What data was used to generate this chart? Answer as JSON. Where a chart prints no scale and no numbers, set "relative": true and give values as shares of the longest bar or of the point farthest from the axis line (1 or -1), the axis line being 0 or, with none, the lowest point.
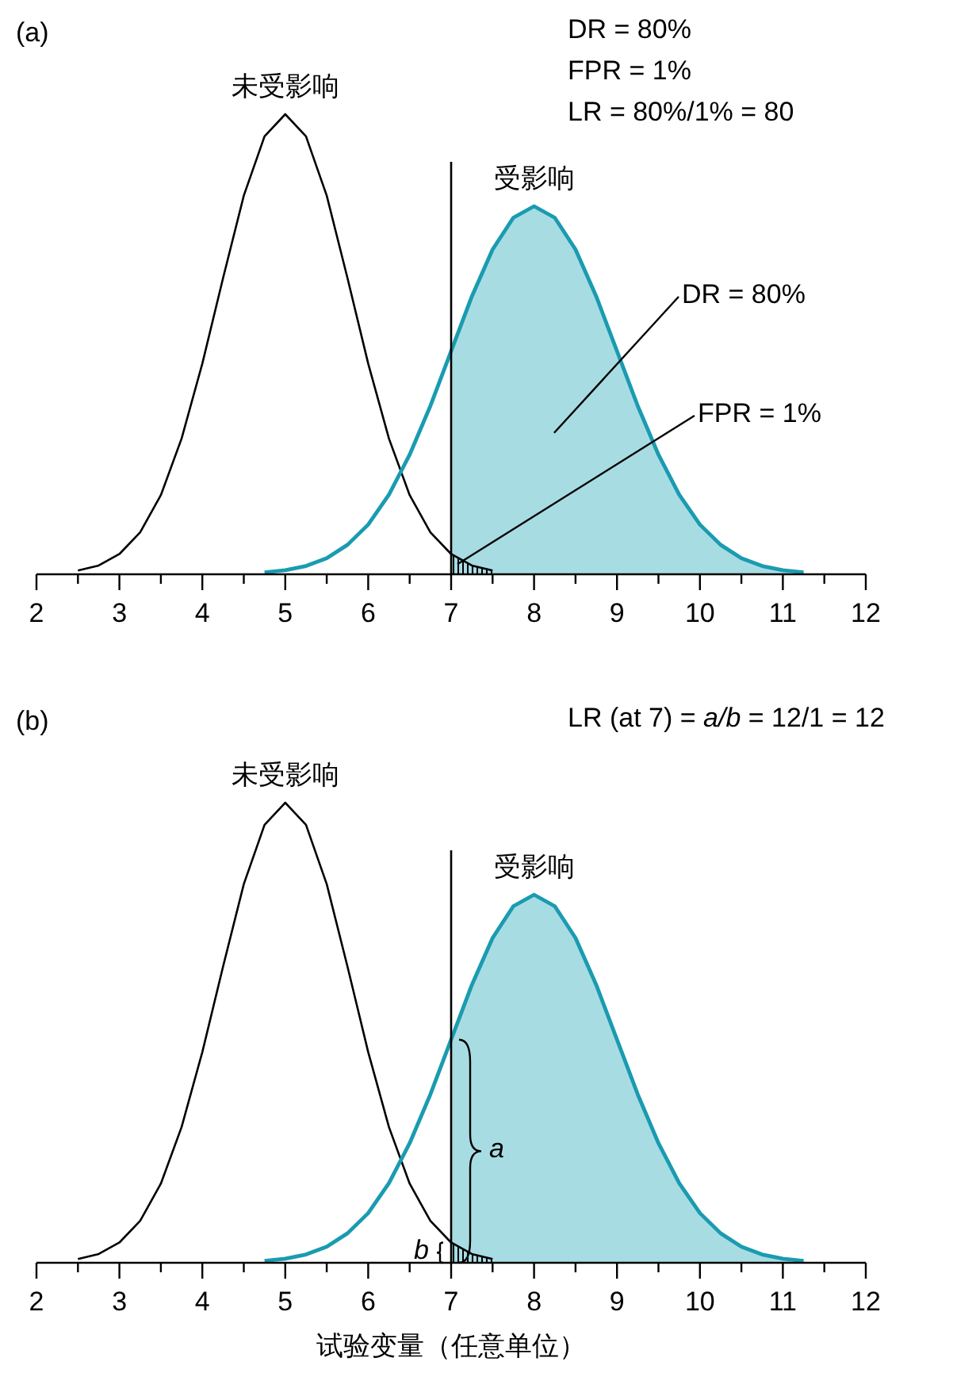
{
  "chart_data": [
    {
      "type": "line",
      "title": "(a)",
      "relative": true,
      "grid": false,
      "tick_labels": "x",
      "xlim": [
        2,
        12
      ],
      "xticks": [
        2,
        {
          "value": 2.5,
          "label": null
        },
        3,
        {
          "value": 3.5,
          "label": null
        },
        4,
        {
          "value": 4.5,
          "label": null
        },
        5,
        {
          "value": 5.5,
          "label": null
        },
        6,
        {
          "value": 6.5,
          "label": null
        },
        7,
        {
          "value": 7.5,
          "label": null
        },
        8,
        {
          "value": 8.5,
          "label": null
        },
        9,
        {
          "value": 9.5,
          "label": null
        },
        10,
        {
          "value": 10.5,
          "label": null
        },
        11,
        {
          "value": 11.5,
          "label": null
        },
        12
      ],
      "series": [
        {
          "type": "area",
          "color": "#a8dce3",
          "x": [
            7,
            7.25,
            7.5,
            7.75,
            8,
            8.25,
            8.5,
            8.75,
            9,
            9.25,
            9.5,
            9.75,
            10,
            10.25,
            10.5,
            10.75,
            11,
            11.25
          ],
          "values": [
            0.485,
            0.604,
            0.706,
            0.775,
            0.8,
            0.775,
            0.706,
            0.604,
            0.485,
            0.366,
            0.26,
            0.173,
            0.108,
            0.064,
            0.035,
            0.018,
            0.009,
            0.004
          ]
        },
        {
          "type": "area",
          "color": "#000000",
          "x": [
            7,
            7.25,
            7.5
          ],
          "values": [
            0.044,
            0.019,
            0.008
          ]
        },
        {
          "name": "未受影响",
          "color": "#000000",
          "x": [
            2.5,
            2.75,
            3,
            3.25,
            3.5,
            3.75,
            4,
            4.25,
            4.5,
            4.75,
            5,
            5.25,
            5.5,
            5.75,
            6,
            6.25,
            6.5,
            6.75,
            7,
            7.25,
            7.5
          ],
          "values": [
            0.008,
            0.019,
            0.044,
            0.091,
            0.172,
            0.295,
            0.458,
            0.644,
            0.823,
            0.952,
            1,
            0.952,
            0.823,
            0.644,
            0.458,
            0.295,
            0.172,
            0.091,
            0.044,
            0.019,
            0.008
          ]
        },
        {
          "name": "受影响",
          "color": "#1a9bb0",
          "x": [
            4.75,
            5,
            5.25,
            5.5,
            5.75,
            6,
            6.25,
            6.5,
            6.75,
            7,
            7.25,
            7.5,
            7.75,
            8,
            8.25,
            8.5,
            8.75,
            9,
            9.25,
            9.5,
            9.75,
            10,
            10.25,
            10.5,
            10.75,
            11,
            11.25
          ],
          "values": [
            0.004,
            0.009,
            0.018,
            0.035,
            0.064,
            0.108,
            0.173,
            0.26,
            0.366,
            0.485,
            0.604,
            0.706,
            0.775,
            0.8,
            0.775,
            0.706,
            0.604,
            0.485,
            0.366,
            0.26,
            0.173,
            0.108,
            0.064,
            0.035,
            0.018,
            0.009,
            0.004
          ]
        }
      ],
      "ref_lines": [
        {
          "axis": "x",
          "value": 7,
          "color": "#000000"
        }
      ],
      "annotations": [
        "DR = 80%",
        "FPR = 1%",
        "LR = 80%/1% = 80",
        "DR = 80%",
        "FPR = 1%"
      ]
    },
    {
      "type": "line",
      "title": "(b)",
      "xlabel": "试验变量（任意单位）",
      "relative": true,
      "grid": false,
      "tick_labels": "x",
      "xlim": [
        2,
        12
      ],
      "xticks": [
        2,
        {
          "value": 2.5,
          "label": null
        },
        3,
        {
          "value": 3.5,
          "label": null
        },
        4,
        {
          "value": 4.5,
          "label": null
        },
        5,
        {
          "value": 5.5,
          "label": null
        },
        6,
        {
          "value": 6.5,
          "label": null
        },
        7,
        {
          "value": 7.5,
          "label": null
        },
        8,
        {
          "value": 8.5,
          "label": null
        },
        9,
        {
          "value": 9.5,
          "label": null
        },
        10,
        {
          "value": 10.5,
          "label": null
        },
        11,
        {
          "value": 11.5,
          "label": null
        },
        12
      ],
      "series": [
        {
          "type": "area",
          "color": "#a8dce3",
          "x": [
            7,
            7.25,
            7.5,
            7.75,
            8,
            8.25,
            8.5,
            8.75,
            9,
            9.25,
            9.5,
            9.75,
            10,
            10.25,
            10.5,
            10.75,
            11,
            11.25
          ],
          "values": [
            0.485,
            0.604,
            0.706,
            0.775,
            0.8,
            0.775,
            0.706,
            0.604,
            0.485,
            0.366,
            0.26,
            0.173,
            0.108,
            0.064,
            0.035,
            0.018,
            0.009,
            0.004
          ]
        },
        {
          "type": "area",
          "color": "#000000",
          "x": [
            7,
            7.25,
            7.5
          ],
          "values": [
            0.044,
            0.019,
            0.008
          ]
        },
        {
          "name": "未受影响",
          "color": "#000000",
          "x": [
            2.5,
            2.75,
            3,
            3.25,
            3.5,
            3.75,
            4,
            4.25,
            4.5,
            4.75,
            5,
            5.25,
            5.5,
            5.75,
            6,
            6.25,
            6.5,
            6.75,
            7,
            7.25,
            7.5
          ],
          "values": [
            0.008,
            0.019,
            0.044,
            0.091,
            0.172,
            0.295,
            0.458,
            0.644,
            0.823,
            0.952,
            1,
            0.952,
            0.823,
            0.644,
            0.458,
            0.295,
            0.172,
            0.091,
            0.044,
            0.019,
            0.008
          ]
        },
        {
          "name": "受影响",
          "color": "#1a9bb0",
          "x": [
            4.75,
            5,
            5.25,
            5.5,
            5.75,
            6,
            6.25,
            6.5,
            6.75,
            7,
            7.25,
            7.5,
            7.75,
            8,
            8.25,
            8.5,
            8.75,
            9,
            9.25,
            9.5,
            9.75,
            10,
            10.25,
            10.5,
            10.75,
            11,
            11.25
          ],
          "values": [
            0.004,
            0.009,
            0.018,
            0.035,
            0.064,
            0.108,
            0.173,
            0.26,
            0.366,
            0.485,
            0.604,
            0.706,
            0.775,
            0.8,
            0.775,
            0.706,
            0.604,
            0.485,
            0.366,
            0.26,
            0.173,
            0.108,
            0.064,
            0.035,
            0.018,
            0.009,
            0.004
          ]
        }
      ],
      "ref_lines": [
        {
          "axis": "x",
          "value": 7,
          "color": "#000000"
        }
      ],
      "annotations": [
        "LR (at 7) = *a/b* = 12/1 = 12",
        "*a*",
        "*b*"
      ]
    }
  ]
}
